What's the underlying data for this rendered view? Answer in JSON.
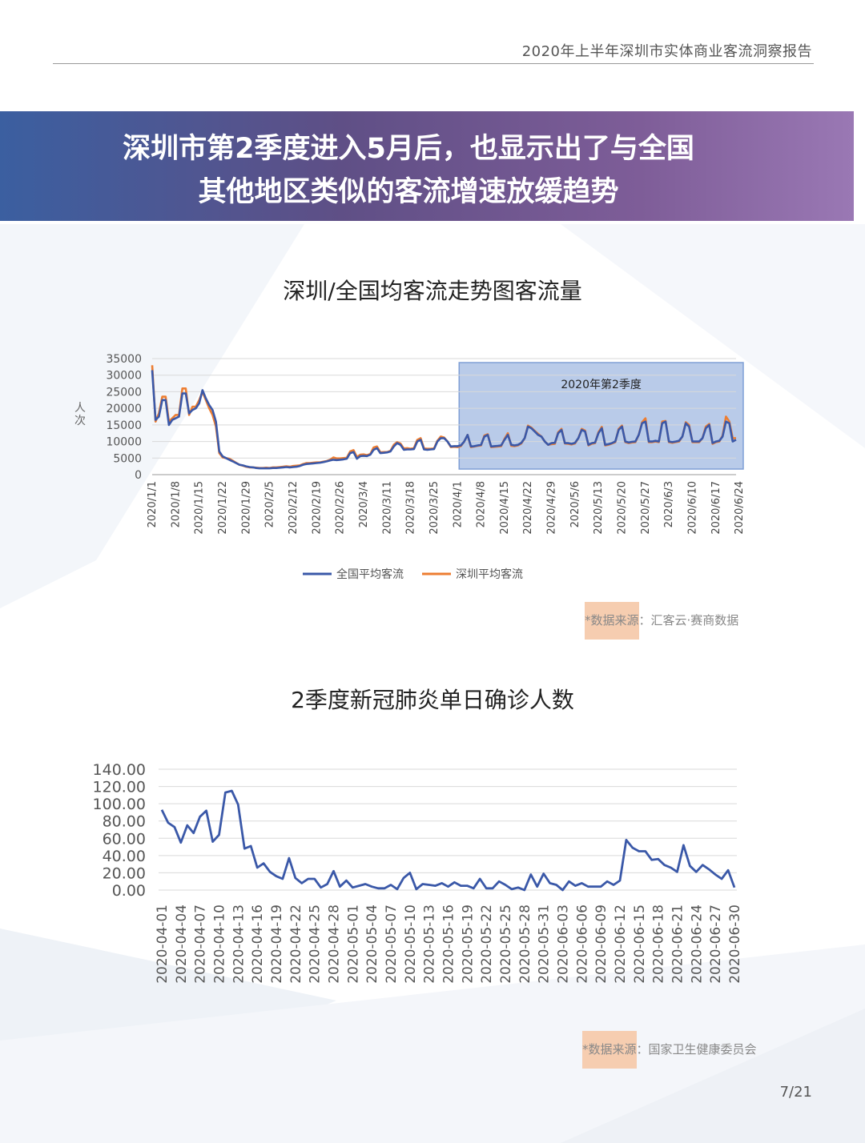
{
  "header": {
    "report_title": "2020年上半年深圳市实体商业客流洞察报告"
  },
  "banner": {
    "line1": "深圳市第2季度进入5月后，也显示出了与全国",
    "line2": "其他地区类似的客流增速放缓趋势"
  },
  "colors": {
    "series_national": "#3a58a8",
    "series_shenzhen": "#ed7d31",
    "covid_line": "#3a58a8",
    "q2_box": "#7f9fd6"
  },
  "chart_data": [
    {
      "type": "line",
      "title": "深圳/全国均客流走势图客流量",
      "ylabel": "人次",
      "ylim": [
        0,
        35000
      ],
      "yticks": [
        "35000",
        "30000",
        "25000",
        "20000",
        "15000",
        "10000",
        "5000",
        "0"
      ],
      "xticks": [
        "2020/1/1",
        "2020/1/8",
        "2020/1/15",
        "2020/1/22",
        "2020/1/29",
        "2020/2/5",
        "2020/2/12",
        "2020/2/19",
        "2020/2/26",
        "2020/3/4",
        "2020/3/11",
        "2020/3/18",
        "2020/3/25",
        "2020/4/1",
        "2020/4/8",
        "2020/4/15",
        "2020/4/22",
        "2020/4/29",
        "2020/5/6",
        "2020/5/13",
        "2020/5/20",
        "2020/5/27",
        "2020/6/3",
        "2020/6/10",
        "2020/6/17",
        "2020/6/24"
      ],
      "annotation": "2020年第2季度",
      "legend": [
        "全国平均客流",
        "深圳平均客流"
      ],
      "source_prefix": "*数据来源",
      "source_rest": "：汇客云·赛商数据",
      "series": [
        {
          "name": "全国平均客流",
          "values": [
            31500,
            16500,
            17500,
            22500,
            22500,
            15000,
            16500,
            17000,
            17500,
            24500,
            24500,
            18500,
            19500,
            20000,
            21500,
            25500,
            23000,
            21000,
            19500,
            16000,
            7000,
            5500,
            5000,
            4500,
            4000,
            3500,
            3000,
            2800,
            2500,
            2300,
            2200,
            2000,
            1900,
            1900,
            1900,
            1900,
            2000,
            2000,
            2100,
            2200,
            2300,
            2200,
            2300,
            2400,
            2600,
            3000,
            3200,
            3300,
            3400,
            3500,
            3600,
            3800,
            4000,
            4300,
            4500,
            4400,
            4500,
            4600,
            4800,
            6500,
            6800,
            4800,
            5600,
            5700,
            5600,
            6000,
            7500,
            8000,
            6500,
            6600,
            6700,
            7000,
            8500,
            9500,
            9000,
            7500,
            7600,
            7600,
            7700,
            10000,
            10500,
            7600,
            7500,
            7600,
            7700,
            10000,
            11000,
            11000,
            10000,
            8500,
            8600,
            8600,
            8800,
            10000,
            12000,
            8500,
            8600,
            8800,
            9000,
            11500,
            12000,
            8500,
            8600,
            8700,
            8800,
            10500,
            12000,
            9000,
            8800,
            9000,
            9600,
            11000,
            14500,
            14000,
            13000,
            12000,
            11500,
            10000,
            9000,
            9500,
            9600,
            12500,
            13500,
            9500,
            9500,
            9300,
            9600,
            11000,
            13500,
            13000,
            9000,
            9500,
            9700,
            12500,
            14000,
            9000,
            9200,
            9500,
            10000,
            13500,
            14500,
            10000,
            9700,
            9900,
            10000,
            12000,
            15500,
            16000,
            10000,
            10000,
            10200,
            10000,
            15500,
            16000,
            10000,
            9800,
            10000,
            10200,
            11500,
            15500,
            14500,
            10000,
            10000,
            10000,
            11000,
            14000,
            15000,
            9500,
            10000,
            10200,
            11500,
            16000,
            15500,
            10000,
            10500
          ]
        },
        {
          "name": "深圳平均客流",
          "values": [
            33000,
            16000,
            18500,
            23500,
            23500,
            16000,
            17000,
            18000,
            18000,
            26000,
            26000,
            18000,
            20500,
            20500,
            22500,
            25000,
            22500,
            20000,
            18000,
            14500,
            6500,
            5200,
            5000,
            4800,
            4200,
            3600,
            3000,
            2700,
            2400,
            2200,
            2200,
            2100,
            2000,
            2000,
            2100,
            2000,
            2200,
            2200,
            2300,
            2400,
            2500,
            2400,
            2600,
            2700,
            2800,
            3200,
            3500,
            3500,
            3600,
            3700,
            3700,
            3900,
            4100,
            4500,
            5200,
            4900,
            4900,
            5000,
            5100,
            7000,
            7400,
            5300,
            6000,
            6100,
            5900,
            6200,
            8200,
            8500,
            6700,
            6800,
            6800,
            7200,
            9000,
            9800,
            9400,
            7900,
            8000,
            7800,
            8000,
            10500,
            11000,
            7900,
            7800,
            7800,
            7900,
            10200,
            11500,
            11200,
            10000,
            8300,
            8400,
            8300,
            8600,
            10000,
            12000,
            8300,
            8500,
            8700,
            8800,
            11800,
            12200,
            8300,
            8400,
            8500,
            8600,
            10800,
            12500,
            8700,
            8600,
            8800,
            9400,
            11000,
            14800,
            14200,
            13200,
            12300,
            11500,
            10000,
            9000,
            9200,
            9300,
            12800,
            13800,
            9400,
            9300,
            9100,
            9400,
            11000,
            13800,
            13300,
            8800,
            9300,
            9500,
            12800,
            14400,
            8800,
            9000,
            9400,
            9800,
            13800,
            14800,
            9800,
            9500,
            9700,
            9800,
            12000,
            15800,
            17000,
            9800,
            9800,
            10000,
            9800,
            16000,
            16200,
            9800,
            9600,
            9800,
            10000,
            11500,
            15800,
            15000,
            9800,
            9800,
            9800,
            11000,
            14500,
            15300,
            9300,
            9800,
            10000,
            11800,
            17500,
            16000,
            11000,
            11000
          ]
        }
      ]
    },
    {
      "type": "line",
      "title": "2季度新冠肺炎单日确诊人数",
      "ylim": [
        0,
        140
      ],
      "yticks": [
        "140.00",
        "120.00",
        "100.00",
        "80.00",
        "60.00",
        "40.00",
        "20.00",
        "0.00"
      ],
      "xticks": [
        "2020-04-01",
        "2020-04-04",
        "2020-04-07",
        "2020-04-10",
        "2020-04-13",
        "2020-04-16",
        "2020-04-19",
        "2020-04-22",
        "2020-04-25",
        "2020-04-28",
        "2020-05-01",
        "2020-05-04",
        "2020-05-07",
        "2020-05-10",
        "2020-05-13",
        "2020-05-16",
        "2020-05-19",
        "2020-05-22",
        "2020-05-25",
        "2020-05-28",
        "2020-05-31",
        "2020-06-03",
        "2020-06-06",
        "2020-06-09",
        "2020-06-12",
        "2020-06-15",
        "2020-06-18",
        "2020-06-21",
        "2020-06-24",
        "2020-06-27",
        "2020-06-30"
      ],
      "source_prefix": "*数据来源",
      "source_rest": "：国家卫生健康委员会",
      "series": [
        {
          "name": "",
          "values": [
            93,
            78,
            73,
            55,
            75,
            66,
            85,
            92,
            56,
            64,
            113,
            115,
            99,
            48,
            51,
            26,
            31,
            21,
            16,
            13,
            37,
            14,
            8,
            13,
            13,
            3,
            7,
            22,
            4,
            11,
            3,
            5,
            7,
            4,
            2,
            2,
            6,
            1,
            14,
            20,
            1,
            7,
            6,
            5,
            8,
            4,
            9,
            5,
            5,
            2,
            13,
            2,
            2,
            10,
            6,
            1,
            3,
            0,
            18,
            4,
            19,
            8,
            6,
            0,
            10,
            5,
            8,
            4,
            4,
            4,
            10,
            6,
            11,
            58,
            49,
            45,
            45,
            35,
            36,
            29,
            26,
            21,
            52,
            28,
            21,
            29,
            24,
            18,
            13,
            23,
            3
          ]
        }
      ]
    }
  ]
}
